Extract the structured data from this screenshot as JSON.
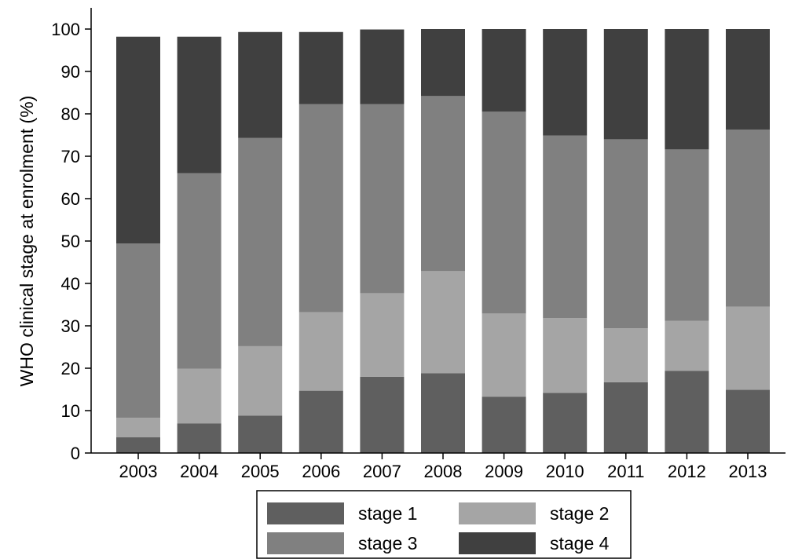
{
  "chart_data": {
    "type": "bar",
    "stacked": true,
    "title": "",
    "xlabel": "",
    "ylabel": "WHO clinical stage at enrolment (%)",
    "ylim": [
      0,
      100
    ],
    "yticks": [
      0,
      10,
      20,
      30,
      40,
      50,
      60,
      70,
      80,
      90,
      100
    ],
    "grid": false,
    "legend_position": "bottom",
    "categories": [
      "2003",
      "2004",
      "2005",
      "2006",
      "2007",
      "2008",
      "2009",
      "2010",
      "2011",
      "2012",
      "2013"
    ],
    "series": [
      {
        "name": "stage 1",
        "color": "#5f5f5f",
        "values": [
          3.7,
          7.0,
          8.8,
          14.7,
          18.0,
          18.8,
          13.3,
          14.2,
          16.7,
          19.4,
          14.9
        ]
      },
      {
        "name": "stage 2",
        "color": "#a5a5a5",
        "values": [
          4.6,
          12.9,
          16.4,
          18.5,
          19.7,
          24.1,
          19.6,
          17.6,
          12.7,
          11.8,
          19.6
        ]
      },
      {
        "name": "stage 3",
        "color": "#808080",
        "values": [
          41.1,
          46.1,
          49.1,
          49.1,
          44.6,
          41.3,
          47.6,
          43.1,
          44.6,
          40.4,
          41.8
        ]
      },
      {
        "name": "stage 4",
        "color": "#404040",
        "values": [
          48.8,
          32.2,
          25.0,
          17.0,
          17.6,
          15.8,
          19.5,
          25.1,
          26.0,
          28.4,
          23.7
        ]
      }
    ],
    "legend_order": [
      "stage 1",
      "stage 2",
      "stage 3",
      "stage 4"
    ]
  }
}
